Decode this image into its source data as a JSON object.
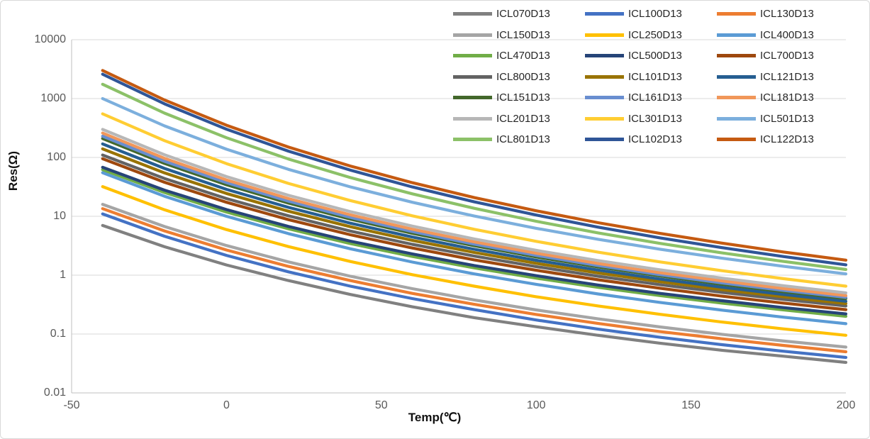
{
  "chart_data": {
    "type": "line",
    "title": "",
    "xlabel": "Temp(℃)",
    "ylabel": "Res(Ω)",
    "grid": true,
    "legend_position": "top-right",
    "legend_columns": 3,
    "x_axis": {
      "min": -50,
      "max": 200,
      "ticks": [
        -50,
        0,
        50,
        100,
        150,
        200
      ]
    },
    "y_axis": {
      "scale": "log",
      "min": 0.01,
      "max": 10000,
      "ticks": [
        10000,
        1000,
        100,
        10,
        1,
        0.1,
        0.01
      ]
    },
    "x": [
      -40,
      -20,
      0,
      20,
      40,
      60,
      80,
      100,
      120,
      140,
      160,
      180,
      200
    ],
    "series": [
      {
        "name": "ICL070D13",
        "color": "#808080",
        "values": [
          7,
          3.04,
          1.49,
          0.81,
          0.47,
          0.29,
          0.19,
          0.133,
          0.095,
          0.07,
          0.053,
          0.042,
          0.033
        ]
      },
      {
        "name": "ICL100D13",
        "color": "#4472C4",
        "values": [
          11,
          4.59,
          2.17,
          1.14,
          0.65,
          0.4,
          0.26,
          0.173,
          0.121,
          0.088,
          0.066,
          0.051,
          0.04
        ]
      },
      {
        "name": "ICL130D13",
        "color": "#ED7D31",
        "values": [
          13.5,
          5.64,
          2.68,
          1.41,
          0.81,
          0.49,
          0.32,
          0.215,
          0.151,
          0.11,
          0.083,
          0.064,
          0.05
        ]
      },
      {
        "name": "ICL150D13",
        "color": "#A5A5A5",
        "values": [
          16,
          6.7,
          3.19,
          1.68,
          0.96,
          0.59,
          0.38,
          0.257,
          0.181,
          0.132,
          0.099,
          0.076,
          0.06
        ]
      },
      {
        "name": "ICL250D13",
        "color": "#FFC000",
        "values": [
          32,
          12.9,
          5.96,
          3.06,
          1.71,
          1.02,
          0.65,
          0.43,
          0.3,
          0.216,
          0.16,
          0.122,
          0.095
        ]
      },
      {
        "name": "ICL400D13",
        "color": "#5B9BD5",
        "values": [
          55,
          21.9,
          10.0,
          5.08,
          2.81,
          1.67,
          1.05,
          0.7,
          0.48,
          0.345,
          0.255,
          0.193,
          0.15
        ]
      },
      {
        "name": "ICL470D13",
        "color": "#70AD47",
        "values": [
          62,
          25.4,
          11.8,
          6.13,
          3.45,
          2.08,
          1.33,
          0.89,
          0.62,
          0.45,
          0.335,
          0.256,
          0.2
        ]
      },
      {
        "name": "ICL500D13",
        "color": "#264478",
        "values": [
          68,
          27.8,
          13.0,
          6.72,
          3.79,
          2.29,
          1.46,
          0.98,
          0.68,
          0.49,
          0.368,
          0.281,
          0.22
        ]
      },
      {
        "name": "ICL700D13",
        "color": "#9E480E",
        "values": [
          95,
          37.9,
          17.3,
          8.78,
          4.86,
          2.89,
          1.82,
          1.21,
          0.835,
          0.6,
          0.44,
          0.335,
          0.26
        ]
      },
      {
        "name": "ICL800D13",
        "color": "#636363",
        "values": [
          110,
          43.9,
          20.0,
          10.2,
          5.62,
          3.34,
          2.11,
          1.4,
          0.96,
          0.69,
          0.51,
          0.386,
          0.3
        ]
      },
      {
        "name": "ICL101D13",
        "color": "#997300",
        "values": [
          140,
          54.6,
          24.4,
          12.2,
          6.65,
          3.9,
          2.43,
          1.59,
          1.09,
          0.775,
          0.568,
          0.428,
          0.33
        ]
      },
      {
        "name": "ICL121D13",
        "color": "#255E91",
        "values": [
          170,
          65.1,
          28.7,
          14.2,
          7.65,
          4.45,
          2.75,
          1.79,
          1.22,
          0.86,
          0.625,
          0.469,
          0.36
        ]
      },
      {
        "name": "ICL151D13",
        "color": "#43682B",
        "values": [
          210,
          79.2,
          34.4,
          16.8,
          8.96,
          5.16,
          3.16,
          2.04,
          1.38,
          0.97,
          0.7,
          0.523,
          0.4
        ]
      },
      {
        "name": "ICL161D13",
        "color": "#698ED0",
        "values": [
          230,
          86.1,
          37.3,
          18.1,
          9.6,
          5.51,
          3.37,
          2.17,
          1.46,
          1.02,
          0.74,
          0.55,
          0.42
        ]
      },
      {
        "name": "ICL181D13",
        "color": "#F1975A",
        "values": [
          260,
          96.6,
          41.5,
          20.0,
          10.6,
          6.03,
          3.67,
          2.36,
          1.58,
          1.1,
          0.8,
          0.59,
          0.45
        ]
      },
      {
        "name": "ICL201D13",
        "color": "#B7B7B7",
        "values": [
          300,
          111,
          47.3,
          22.7,
          12.0,
          6.81,
          4.13,
          2.64,
          1.77,
          1.23,
          0.89,
          0.66,
          0.5
        ]
      },
      {
        "name": "ICL301D13",
        "color": "#FFCD33",
        "values": [
          550,
          193,
          78.6,
          36.2,
          18.5,
          10.2,
          6.02,
          3.76,
          2.46,
          1.68,
          1.19,
          0.87,
          0.65
        ]
      },
      {
        "name": "ICL501D13",
        "color": "#7CAFDD",
        "values": [
          1000,
          344,
          138,
          62.8,
          31.6,
          17.3,
          10.1,
          6.26,
          4.07,
          2.76,
          1.94,
          1.41,
          1.05
        ]
      },
      {
        "name": "ICL801D13",
        "color": "#8CC168",
        "values": [
          1750,
          566,
          216,
          94.1,
          45.5,
          24.1,
          13.7,
          8.24,
          5.23,
          3.47,
          2.39,
          1.71,
          1.25
        ]
      },
      {
        "name": "ICL102D13",
        "color": "#2F5597",
        "values": [
          2600,
          814,
          302,
          128,
          60.8,
          31.5,
          17.6,
          10.5,
          6.55,
          4.3,
          2.93,
          2.07,
          1.5
        ]
      },
      {
        "name": "ICL122D13",
        "color": "#C55A11",
        "values": [
          3000,
          945,
          352,
          150,
          71.5,
          37.2,
          20.8,
          12.4,
          7.8,
          5.13,
          3.5,
          2.47,
          1.8
        ]
      }
    ]
  },
  "colors": {
    "gridline": "#D9D9D9",
    "axis_line": "#BFBFBF",
    "tick_label": "#595959",
    "legend_text": "#262626",
    "background": "#FFFFFF",
    "border": "#D9D9D9",
    "line_width": 4.2
  }
}
